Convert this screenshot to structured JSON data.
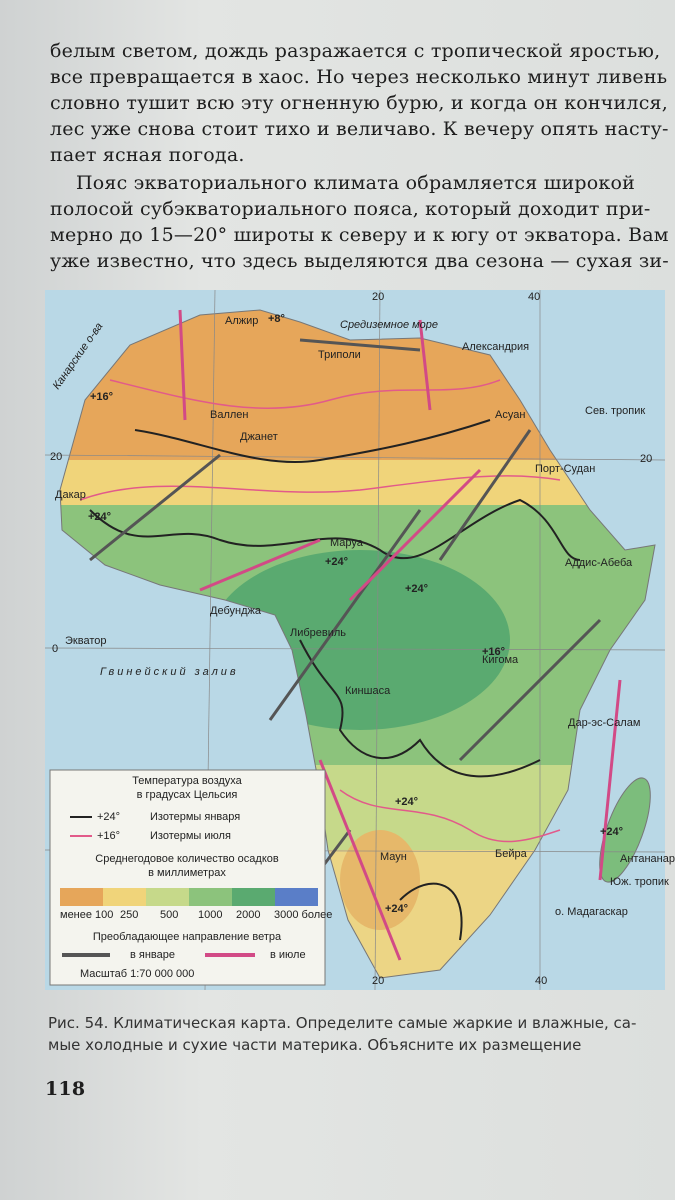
{
  "text": {
    "paragraph1": [
      "белым светом, дождь разражается с тропической яростью,",
      "все превращается в хаос. Но через несколько минут ливень",
      "словно тушит всю эту огненную бурю, и когда он кончился,",
      "лес уже снова стоит тихо и величаво. К вечеру опять насту-",
      "пает ясная погода."
    ],
    "paragraph2": [
      "Пояс экваториального климата обрамляется широкой",
      "полосой субэкваториального пояса, который доходит при-",
      "мерно до 15—20° широты к северу и к югу от экватора. Вам",
      "уже известно, что здесь выделяются два сезона — сухая зи-"
    ]
  },
  "map": {
    "places": [
      "Алжир",
      "Триполи",
      "Александрия",
      "Средиземное море",
      "Канарские о-ва",
      "Валлен",
      "Джанет",
      "Асуан",
      "Сев. тропик",
      "Порт-Судан",
      "Дакар",
      "Маруа",
      "Аддис-Абеба",
      "Дебунджа",
      "Экватор",
      "Либревиль",
      "Гвинейский залив",
      "Кигома",
      "Киншаса",
      "Дар-эс-Салам",
      "Маун",
      "Бейра",
      "Антананариву",
      "о. Мадагаскар",
      "Юж. тропик"
    ],
    "coordinates": [
      "20",
      "40",
      "20",
      "20",
      "0",
      "20",
      "40"
    ],
    "isotherms": [
      "+8°",
      "+16°",
      "+24°",
      "+24°",
      "+24°",
      "+16°",
      "+24°",
      "+24°",
      "+24°"
    ]
  },
  "legend": {
    "temperature_title": [
      "Температура воздуха",
      "в градусах Цельсия"
    ],
    "january_label": "+24°",
    "january": "Изотермы января",
    "july_label": "+16°",
    "july": "Изотермы июля",
    "precip_title": [
      "Среднегодовое количество осадков",
      "в миллиметрах"
    ],
    "scale": [
      "менее 100",
      "250",
      "500",
      "1000",
      "2000",
      "3000 более"
    ],
    "wind_title": "Преобладающее направление ветра",
    "wind_january": "в январе",
    "wind_july": "в июле",
    "map_scale": "Масштаб 1:70 000 000"
  },
  "caption": [
    "Рис. 54. Климатическая карта. Определите самые жаркие и влажные, са-",
    "мые холодные и сухие части материка. Объясните их размещение"
  ],
  "page_number": "118"
}
